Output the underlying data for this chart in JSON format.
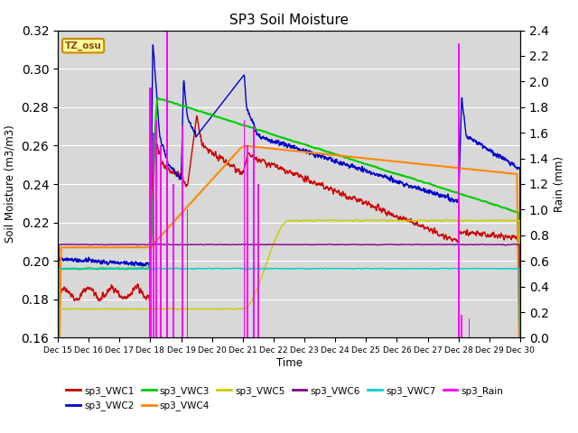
{
  "title": "SP3 Soil Moisture",
  "ylabel_left": "Soil Moisture (m3/m3)",
  "ylabel_right": "Rain (mm)",
  "xlabel": "Time",
  "ylim_left": [
    0.16,
    0.32
  ],
  "ylim_right": [
    0.0,
    2.4
  ],
  "bg_color": "#d8d8d8",
  "tz_label": "TZ_osu",
  "colors": {
    "vwc1": "#cc0000",
    "vwc2": "#0000cc",
    "vwc3": "#00cc00",
    "vwc4": "#ff8800",
    "vwc5": "#cccc00",
    "vwc6": "#880088",
    "vwc7": "#00cccc",
    "rain": "#ff00ff"
  },
  "legend_items": [
    [
      "sp3_VWC1",
      "#cc0000"
    ],
    [
      "sp3_VWC2",
      "#0000cc"
    ],
    [
      "sp3_VWC3",
      "#00cc00"
    ],
    [
      "sp3_VWC4",
      "#ff8800"
    ],
    [
      "sp3_VWC5",
      "#cccc00"
    ],
    [
      "sp3_VWC6",
      "#880088"
    ],
    [
      "sp3_VWC7",
      "#00cccc"
    ],
    [
      "sp3_Rain",
      "#ff00ff"
    ]
  ]
}
